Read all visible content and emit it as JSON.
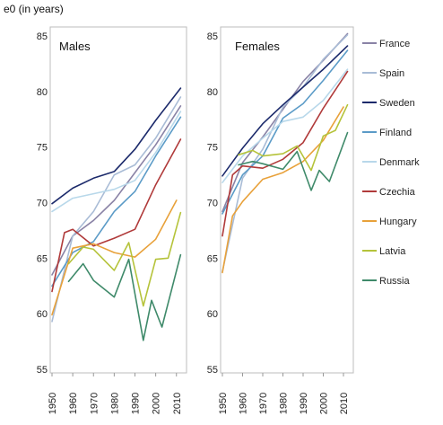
{
  "chart_data": [
    {
      "type": "line",
      "title": "Males",
      "ylabel": "e0 (in years)",
      "ylim": [
        55,
        85
      ],
      "yticks": [
        55,
        60,
        65,
        70,
        75,
        80,
        85
      ],
      "xlim": [
        1950,
        2014
      ],
      "xticks": [
        1950,
        1960,
        1970,
        1980,
        1990,
        2000,
        2010
      ],
      "grid": false,
      "series": [
        {
          "name": "France",
          "color": "#8a83a6",
          "points": [
            [
              1950,
              63.5
            ],
            [
              1960,
              67.0
            ],
            [
              1970,
              68.4
            ],
            [
              1980,
              70.2
            ],
            [
              1990,
              72.7
            ],
            [
              2000,
              75.2
            ],
            [
              2012,
              78.7
            ]
          ]
        },
        {
          "name": "Spain",
          "color": "#a9bcd6",
          "points": [
            [
              1950,
              59.3
            ],
            [
              1960,
              67.0
            ],
            [
              1970,
              69.2
            ],
            [
              1980,
              72.5
            ],
            [
              1990,
              73.4
            ],
            [
              2000,
              75.8
            ],
            [
              2012,
              79.5
            ]
          ]
        },
        {
          "name": "Sweden",
          "color": "#1c2a6b",
          "points": [
            [
              1950,
              69.9
            ],
            [
              1960,
              71.3
            ],
            [
              1970,
              72.2
            ],
            [
              1980,
              72.8
            ],
            [
              1990,
              74.8
            ],
            [
              2000,
              77.4
            ],
            [
              2012,
              80.3
            ]
          ]
        },
        {
          "name": "Finland",
          "color": "#5b9bc7",
          "points": [
            [
              1950,
              62.5
            ],
            [
              1960,
              65.5
            ],
            [
              1970,
              66.5
            ],
            [
              1980,
              69.2
            ],
            [
              1990,
              71.0
            ],
            [
              2000,
              74.2
            ],
            [
              2012,
              77.7
            ]
          ]
        },
        {
          "name": "Denmark",
          "color": "#b8d8ea",
          "points": [
            [
              1950,
              69.2
            ],
            [
              1960,
              70.4
            ],
            [
              1970,
              70.8
            ],
            [
              1980,
              71.2
            ],
            [
              1990,
              72.0
            ],
            [
              2000,
              74.5
            ],
            [
              2012,
              78.2
            ]
          ]
        },
        {
          "name": "Czechia",
          "color": "#b03a3a",
          "points": [
            [
              1950,
              62.0
            ],
            [
              1956,
              67.3
            ],
            [
              1960,
              67.6
            ],
            [
              1970,
              66.1
            ],
            [
              1980,
              66.8
            ],
            [
              1990,
              67.6
            ],
            [
              2000,
              71.6
            ],
            [
              2012,
              75.7
            ]
          ]
        },
        {
          "name": "Hungary",
          "color": "#e8a13a",
          "points": [
            [
              1950,
              59.9
            ],
            [
              1960,
              65.9
            ],
            [
              1970,
              66.3
            ],
            [
              1980,
              65.5
            ],
            [
              1990,
              65.1
            ],
            [
              2000,
              66.7
            ],
            [
              2010,
              70.2
            ]
          ]
        },
        {
          "name": "Latvia",
          "color": "#b5c33a",
          "points": [
            [
              1958,
              64.5
            ],
            [
              1965,
              66.0
            ],
            [
              1970,
              65.8
            ],
            [
              1980,
              63.9
            ],
            [
              1987,
              66.4
            ],
            [
              1994,
              60.7
            ],
            [
              2000,
              64.9
            ],
            [
              2006,
              65.0
            ],
            [
              2012,
              69.1
            ]
          ]
        },
        {
          "name": "Russia",
          "color": "#3f8a6a",
          "points": [
            [
              1958,
              62.9
            ],
            [
              1965,
              64.5
            ],
            [
              1970,
              63.0
            ],
            [
              1980,
              61.5
            ],
            [
              1987,
              64.9
            ],
            [
              1994,
              57.6
            ],
            [
              1998,
              61.2
            ],
            [
              2003,
              58.8
            ],
            [
              2012,
              65.3
            ]
          ]
        }
      ]
    },
    {
      "type": "line",
      "title": "Females",
      "ylabel": "",
      "ylim": [
        55,
        85
      ],
      "yticks": [
        55,
        60,
        65,
        70,
        75,
        80,
        85
      ],
      "xlim": [
        1950,
        2014
      ],
      "xticks": [
        1950,
        1960,
        1970,
        1980,
        1990,
        2000,
        2010
      ],
      "grid": false,
      "series": [
        {
          "name": "France",
          "color": "#8a83a6",
          "points": [
            [
              1950,
              69.2
            ],
            [
              1960,
              73.6
            ],
            [
              1970,
              75.9
            ],
            [
              1980,
              78.4
            ],
            [
              1990,
              80.9
            ],
            [
              2000,
              82.8
            ],
            [
              2012,
              85.2
            ]
          ]
        },
        {
          "name": "Spain",
          "color": "#a9bcd6",
          "points": [
            [
              1950,
              63.8
            ],
            [
              1960,
              72.2
            ],
            [
              1970,
              74.8
            ],
            [
              1980,
              78.6
            ],
            [
              1990,
              80.4
            ],
            [
              2000,
              82.9
            ],
            [
              2012,
              85.1
            ]
          ]
        },
        {
          "name": "Sweden",
          "color": "#1c2a6b",
          "points": [
            [
              1950,
              72.4
            ],
            [
              1960,
              74.9
            ],
            [
              1970,
              77.1
            ],
            [
              1980,
              78.8
            ],
            [
              1990,
              80.4
            ],
            [
              2000,
              82.0
            ],
            [
              2012,
              84.1
            ]
          ]
        },
        {
          "name": "Finland",
          "color": "#5b9bc7",
          "points": [
            [
              1950,
              69.0
            ],
            [
              1960,
              72.5
            ],
            [
              1970,
              74.2
            ],
            [
              1980,
              77.6
            ],
            [
              1990,
              78.9
            ],
            [
              2000,
              81.0
            ],
            [
              2012,
              83.7
            ]
          ]
        },
        {
          "name": "Denmark",
          "color": "#b8d8ea",
          "points": [
            [
              1950,
              71.8
            ],
            [
              1960,
              74.2
            ],
            [
              1970,
              75.8
            ],
            [
              1980,
              77.3
            ],
            [
              1990,
              77.7
            ],
            [
              2000,
              79.2
            ],
            [
              2012,
              82.0
            ]
          ]
        },
        {
          "name": "Czechia",
          "color": "#b03a3a",
          "points": [
            [
              1950,
              67.0
            ],
            [
              1955,
              72.5
            ],
            [
              1960,
              73.3
            ],
            [
              1970,
              73.1
            ],
            [
              1980,
              73.9
            ],
            [
              1990,
              75.4
            ],
            [
              2000,
              78.5
            ],
            [
              2012,
              81.8
            ]
          ]
        },
        {
          "name": "Hungary",
          "color": "#e8a13a",
          "points": [
            [
              1950,
              63.7
            ],
            [
              1955,
              68.8
            ],
            [
              1960,
              70.1
            ],
            [
              1970,
              72.1
            ],
            [
              1980,
              72.7
            ],
            [
              1990,
              73.7
            ],
            [
              2000,
              75.6
            ],
            [
              2010,
              78.6
            ]
          ]
        },
        {
          "name": "Latvia",
          "color": "#b5c33a",
          "points": [
            [
              1958,
              74.3
            ],
            [
              1965,
              74.7
            ],
            [
              1970,
              74.2
            ],
            [
              1980,
              74.4
            ],
            [
              1987,
              75.1
            ],
            [
              1994,
              72.9
            ],
            [
              2000,
              76.0
            ],
            [
              2006,
              76.5
            ],
            [
              2012,
              78.8
            ]
          ]
        },
        {
          "name": "Russia",
          "color": "#3f8a6a",
          "points": [
            [
              1958,
              73.4
            ],
            [
              1965,
              73.7
            ],
            [
              1970,
              73.5
            ],
            [
              1980,
              73.0
            ],
            [
              1987,
              74.6
            ],
            [
              1994,
              71.1
            ],
            [
              1998,
              72.9
            ],
            [
              2003,
              71.9
            ],
            [
              2012,
              76.3
            ]
          ]
        }
      ]
    }
  ],
  "legend": {
    "position": "right",
    "items": [
      {
        "label": "France",
        "color": "#8a83a6"
      },
      {
        "label": "Spain",
        "color": "#a9bcd6"
      },
      {
        "label": "Sweden",
        "color": "#1c2a6b"
      },
      {
        "label": "Finland",
        "color": "#5b9bc7"
      },
      {
        "label": "Denmark",
        "color": "#b8d8ea"
      },
      {
        "label": "Czechia",
        "color": "#b03a3a"
      },
      {
        "label": "Hungary",
        "color": "#e8a13a"
      },
      {
        "label": "Latvia",
        "color": "#b5c33a"
      },
      {
        "label": "Russia",
        "color": "#3f8a6a"
      }
    ]
  }
}
